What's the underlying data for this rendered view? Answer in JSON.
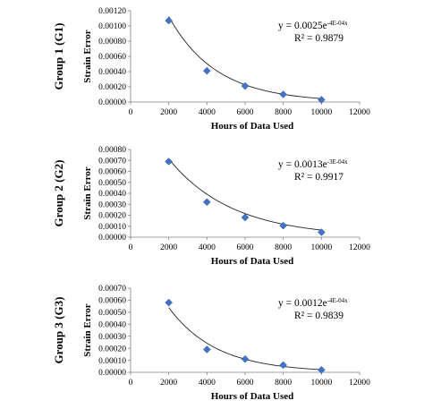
{
  "chart_data": [
    {
      "type": "scatter",
      "group_label": "Group 1 (G1)",
      "xlabel": "Hours of Data Used",
      "ylabel": "Strain Error",
      "xlim": [
        0,
        12000
      ],
      "ylim": [
        0,
        0.0012
      ],
      "x_ticks": [
        "0",
        "2000",
        "4000",
        "6000",
        "8000",
        "10000",
        "12000"
      ],
      "y_ticks": [
        "0.00000",
        "0.00020",
        "0.00040",
        "0.00060",
        "0.00080",
        "0.00100",
        "0.00120"
      ],
      "points": [
        {
          "x": 2000,
          "y": 0.00107
        },
        {
          "x": 4000,
          "y": 0.00041
        },
        {
          "x": 6000,
          "y": 0.00021
        },
        {
          "x": 8000,
          "y": 0.0001
        },
        {
          "x": 10000,
          "y": 3e-05
        }
      ],
      "trendline": {
        "type": "exponential",
        "a": 0.0025,
        "b": -0.0004
      },
      "equation_main": "y = 0.0025e",
      "equation_exp": "-4E-04x",
      "r_squared": "R² = 0.9879",
      "marker_color": "#4472C4",
      "grid": false
    },
    {
      "type": "scatter",
      "group_label": "Group 2 (G2)",
      "xlabel": "Hours of Data Used",
      "ylabel": "Strain Error",
      "xlim": [
        0,
        12000
      ],
      "ylim": [
        0,
        0.0008
      ],
      "x_ticks": [
        "0",
        "2000",
        "4000",
        "6000",
        "8000",
        "10000",
        "12000"
      ],
      "y_ticks": [
        "0.00000",
        "0.00010",
        "0.00020",
        "0.00030",
        "0.00040",
        "0.00050",
        "0.00060",
        "0.00070",
        "0.00080"
      ],
      "points": [
        {
          "x": 2000,
          "y": 0.00069
        },
        {
          "x": 4000,
          "y": 0.00032
        },
        {
          "x": 6000,
          "y": 0.00018
        },
        {
          "x": 8000,
          "y": 0.000105
        },
        {
          "x": 10000,
          "y": 4.5e-05
        }
      ],
      "trendline": {
        "type": "exponential",
        "a": 0.0013,
        "b": -0.0003
      },
      "equation_main": "y = 0.0013e",
      "equation_exp": "-3E-04x",
      "r_squared": "R² = 0.9917",
      "marker_color": "#4472C4",
      "grid": false
    },
    {
      "type": "scatter",
      "group_label": "Group 3 (G3)",
      "xlabel": "Hours of Data Used",
      "ylabel": "Strain Error",
      "xlim": [
        0,
        12000
      ],
      "ylim": [
        0,
        0.0007
      ],
      "x_ticks": [
        "0",
        "2000",
        "4000",
        "6000",
        "8000",
        "10000",
        "12000"
      ],
      "y_ticks": [
        "0.00000",
        "0.00010",
        "0.00020",
        "0.00030",
        "0.00040",
        "0.00050",
        "0.00060",
        "0.00070"
      ],
      "points": [
        {
          "x": 2000,
          "y": 0.00058
        },
        {
          "x": 4000,
          "y": 0.00019
        },
        {
          "x": 6000,
          "y": 0.00011
        },
        {
          "x": 8000,
          "y": 6e-05
        },
        {
          "x": 10000,
          "y": 2e-05
        }
      ],
      "trendline": {
        "type": "exponential",
        "a": 0.0012,
        "b": -0.0004
      },
      "equation_main": "y = 0.0012e",
      "equation_exp": "-4E-04x",
      "r_squared": "R² = 0.9839",
      "marker_color": "#4472C4",
      "grid": false
    }
  ]
}
